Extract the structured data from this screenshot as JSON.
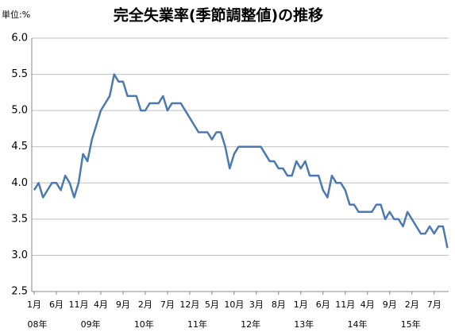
{
  "chart_data": {
    "type": "line",
    "title": "完全失業率(季節調整値)の推移",
    "unit_label": "単位:%",
    "categories": [
      "1月",
      null,
      null,
      null,
      null,
      "6月",
      null,
      null,
      null,
      null,
      "11月",
      null,
      null,
      null,
      null,
      "4月",
      null,
      null,
      null,
      null,
      "9月",
      null,
      null,
      null,
      null,
      "2月",
      null,
      null,
      null,
      null,
      "7月",
      null,
      null,
      null,
      null,
      "12月",
      null,
      null,
      null,
      null,
      "5月",
      null,
      null,
      null,
      null,
      "10月",
      null,
      null,
      null,
      null,
      "3月",
      null,
      null,
      null,
      null,
      "8月",
      null,
      null,
      null,
      null,
      "1月",
      null,
      null,
      null,
      null,
      "6月",
      null,
      null,
      null,
      null,
      "11月",
      null,
      null,
      null,
      null,
      "4月",
      null,
      null,
      null,
      null,
      "9月",
      null,
      null,
      null,
      null,
      "2月",
      null,
      null,
      null,
      null,
      "7月",
      null,
      null,
      null
    ],
    "year_categories": [
      "08年",
      null,
      null,
      null,
      null,
      null,
      null,
      null,
      null,
      null,
      null,
      null,
      "09年",
      null,
      null,
      null,
      null,
      null,
      null,
      null,
      null,
      null,
      null,
      null,
      "10年",
      null,
      null,
      null,
      null,
      null,
      null,
      null,
      null,
      null,
      null,
      null,
      "11年",
      null,
      null,
      null,
      null,
      null,
      null,
      null,
      null,
      null,
      null,
      null,
      "12年",
      null,
      null,
      null,
      null,
      null,
      null,
      null,
      null,
      null,
      null,
      null,
      "13年",
      null,
      null,
      null,
      null,
      null,
      null,
      null,
      null,
      null,
      null,
      null,
      "14年",
      null,
      null,
      null,
      null,
      null,
      null,
      null,
      null,
      null,
      null,
      null,
      "15年",
      null,
      null,
      null,
      null,
      null,
      null,
      null,
      null,
      null
    ],
    "values": [
      3.9,
      4.0,
      3.8,
      3.9,
      4.0,
      4.0,
      3.9,
      4.1,
      4.0,
      3.8,
      4.0,
      4.4,
      4.3,
      4.6,
      4.8,
      5.0,
      5.1,
      5.2,
      5.5,
      5.4,
      5.4,
      5.2,
      5.2,
      5.2,
      5.0,
      5.0,
      5.1,
      5.1,
      5.1,
      5.2,
      5.0,
      5.1,
      5.1,
      5.1,
      5.0,
      4.9,
      4.8,
      4.7,
      4.7,
      4.7,
      4.6,
      4.7,
      4.7,
      4.5,
      4.2,
      4.4,
      4.5,
      4.5,
      4.5,
      4.5,
      4.5,
      4.5,
      4.4,
      4.3,
      4.3,
      4.2,
      4.2,
      4.1,
      4.1,
      4.3,
      4.2,
      4.3,
      4.1,
      4.1,
      4.1,
      3.9,
      3.8,
      4.1,
      4.0,
      4.0,
      3.9,
      3.7,
      3.7,
      3.6,
      3.6,
      3.6,
      3.6,
      3.7,
      3.7,
      3.5,
      3.6,
      3.5,
      3.5,
      3.4,
      3.6,
      3.5,
      3.4,
      3.3,
      3.3,
      3.4,
      3.3,
      3.4,
      3.4,
      3.1
    ],
    "color": "#4a7ab0",
    "ylim": [
      2.5,
      6
    ],
    "yticks": [
      2.5,
      {
        "value": 3,
        "label": "3.0"
      },
      3.5,
      {
        "value": 4,
        "label": "4.0"
      },
      4.5,
      {
        "value": 5,
        "label": "5.0"
      },
      5.5,
      {
        "value": 6,
        "label": "6.0"
      }
    ],
    "grid": true
  }
}
